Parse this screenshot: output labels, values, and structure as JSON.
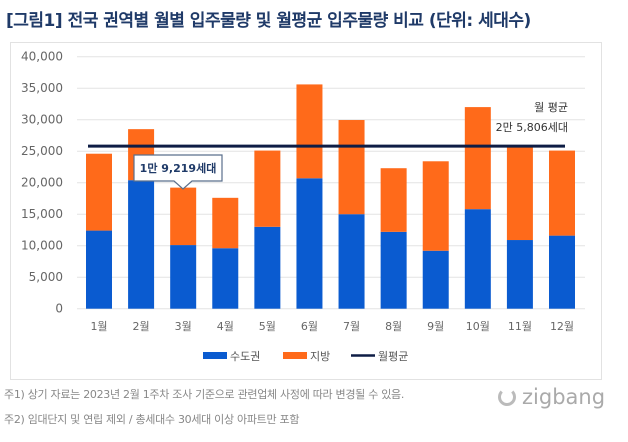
{
  "chart_data": {
    "type": "bar",
    "stacked": true,
    "title": "[그림1] 전국 권역별 월별 입주물량 및 월평균 입주물량 비교 (단위: 세대수)",
    "categories": [
      "1월",
      "2월",
      "3월",
      "4월",
      "5월",
      "6월",
      "7월",
      "8월",
      "9월",
      "10월",
      "11월",
      "12월"
    ],
    "series": [
      {
        "name": "수도권",
        "color": "#0a5bd0",
        "values": [
          12400,
          20400,
          10100,
          9600,
          13000,
          20700,
          15000,
          12200,
          9200,
          15800,
          10900,
          11600
        ]
      },
      {
        "name": "지방",
        "color": "#ff6a1a",
        "values": [
          12200,
          8100,
          9119,
          8000,
          12100,
          14900,
          14950,
          10100,
          14200,
          16200,
          14900,
          13500
        ]
      }
    ],
    "line": {
      "name": "월평균",
      "color": "#0e1d45",
      "value": 25806
    },
    "ylim": [
      0,
      40000
    ],
    "yticks": [
      "0",
      "5,000",
      "10,000",
      "15,000",
      "20,000",
      "25,000",
      "30,000",
      "35,000",
      "40,000"
    ],
    "grid": true,
    "legend": "bottom",
    "annotations": {
      "callout": "1만 9,219세대",
      "avg_label_1": "월 평균",
      "avg_label_2": "2만 5,806세대"
    }
  },
  "notes": [
    "주1) 상기 자료는 2023년 2월 1주차 조사 기준으로 관련업체 사정에 따라 변경될 수 있음.",
    "주2) 임대단지 및 연립 제외 / 총세대수 30세대 이상 아파트만 포함"
  ],
  "logo": "zigbang"
}
